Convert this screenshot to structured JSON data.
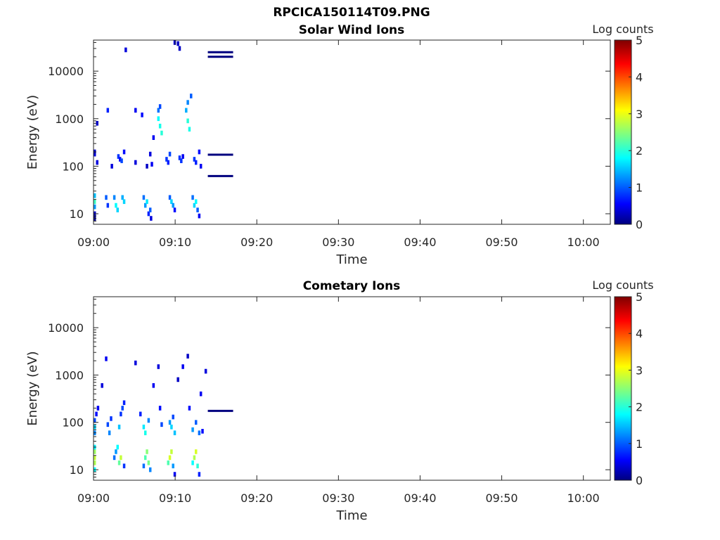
{
  "figure_title": "RPCICA150114T09.PNG",
  "colors": {
    "jet_stops": [
      "#00007f",
      "#0000ff",
      "#00ffff",
      "#ffff00",
      "#ff0000",
      "#7f0000"
    ],
    "axis": "#262626",
    "background": "#ffffff"
  },
  "chart_data": [
    {
      "type": "heatmap",
      "title": "Solar Wind Ions",
      "xlabel": "Time",
      "ylabel": "Energy (eV)",
      "x_ticks": [
        "09:00",
        "09:10",
        "09:20",
        "09:30",
        "09:40",
        "09:50",
        "10:00"
      ],
      "x_tick_minutes": [
        0,
        10,
        20,
        30,
        40,
        50,
        60
      ],
      "xlim_minutes": [
        0,
        63.3
      ],
      "y_scale": "log",
      "y_ticks": [
        "10",
        "100",
        "1000",
        "10000"
      ],
      "y_tick_values": [
        10,
        100,
        1000,
        10000
      ],
      "ylim": [
        6,
        45000
      ],
      "colorbar": {
        "label": "Log counts",
        "ticks": [
          "0",
          "1",
          "2",
          "3",
          "4",
          "5"
        ],
        "range": [
          0,
          5
        ]
      },
      "cells": [
        [
          0.0,
          10,
          0.3
        ],
        [
          0.0,
          8,
          0.1
        ],
        [
          0.0,
          14,
          1.3
        ],
        [
          0.0,
          18,
          2.1
        ],
        [
          0.0,
          24,
          1.5
        ],
        [
          0.0,
          180,
          0.4
        ],
        [
          0.0,
          200,
          0.3
        ],
        [
          0.3,
          120,
          0.4
        ],
        [
          0.3,
          800,
          0.3
        ],
        [
          1.4,
          22,
          1.0
        ],
        [
          1.6,
          15,
          0.8
        ],
        [
          1.6,
          1500,
          0.7
        ],
        [
          2.1,
          100,
          0.4
        ],
        [
          2.4,
          22,
          1.2
        ],
        [
          2.6,
          15,
          1.8
        ],
        [
          2.8,
          12,
          1.6
        ],
        [
          2.9,
          160,
          0.8
        ],
        [
          3.1,
          140,
          0.6
        ],
        [
          3.3,
          130,
          0.9
        ],
        [
          3.4,
          22,
          1.4
        ],
        [
          3.6,
          18,
          1.6
        ],
        [
          3.6,
          200,
          0.6
        ],
        [
          3.8,
          28000,
          0.4
        ],
        [
          5.0,
          1500,
          0.5
        ],
        [
          5.0,
          120,
          0.4
        ],
        [
          5.8,
          1200,
          0.6
        ],
        [
          6.0,
          22,
          1.1
        ],
        [
          6.2,
          15,
          1.3
        ],
        [
          6.4,
          18,
          1.7
        ],
        [
          6.6,
          10,
          0.7
        ],
        [
          6.8,
          12,
          1.0
        ],
        [
          6.9,
          8,
          0.4
        ],
        [
          6.4,
          100,
          0.3
        ],
        [
          6.8,
          180,
          0.4
        ],
        [
          7.0,
          110,
          0.5
        ],
        [
          7.2,
          400,
          0.5
        ],
        [
          7.8,
          1500,
          1.1
        ],
        [
          7.8,
          1000,
          1.8
        ],
        [
          8.0,
          700,
          1.9
        ],
        [
          8.0,
          1800,
          0.9
        ],
        [
          8.2,
          500,
          2.0
        ],
        [
          8.8,
          140,
          0.8
        ],
        [
          9.0,
          120,
          0.7
        ],
        [
          9.2,
          180,
          0.9
        ],
        [
          9.2,
          22,
          1.0
        ],
        [
          9.4,
          18,
          1.6
        ],
        [
          9.6,
          15,
          1.3
        ],
        [
          9.8,
          12,
          0.6
        ],
        [
          9.8,
          40000,
          0.4
        ],
        [
          10.2,
          38000,
          0.3
        ],
        [
          10.4,
          30000,
          0.3
        ],
        [
          10.4,
          150,
          0.8
        ],
        [
          10.6,
          130,
          0.8
        ],
        [
          10.8,
          160,
          0.5
        ],
        [
          11.2,
          1500,
          1.4
        ],
        [
          11.4,
          900,
          2.0
        ],
        [
          11.4,
          2200,
          1.2
        ],
        [
          11.6,
          600,
          1.9
        ],
        [
          11.8,
          3000,
          1.0
        ],
        [
          12.0,
          22,
          1.1
        ],
        [
          12.2,
          15,
          1.6
        ],
        [
          12.4,
          18,
          1.8
        ],
        [
          12.6,
          12,
          1.0
        ],
        [
          12.8,
          9,
          0.5
        ],
        [
          12.2,
          140,
          0.8
        ],
        [
          12.4,
          120,
          0.7
        ],
        [
          12.8,
          200,
          0.6
        ],
        [
          13.0,
          100,
          0.5
        ]
      ],
      "lines": [
        {
          "x_start": 14.0,
          "x_end": 17.1,
          "y": 25000
        },
        {
          "x_start": 14.0,
          "x_end": 17.1,
          "y": 20000
        },
        {
          "x_start": 14.0,
          "x_end": 17.1,
          "y": 175
        },
        {
          "x_start": 14.0,
          "x_end": 17.1,
          "y": 62
        }
      ]
    },
    {
      "type": "heatmap",
      "title": "Cometary Ions",
      "xlabel": "Time",
      "ylabel": "Energy (eV)",
      "x_ticks": [
        "09:00",
        "09:10",
        "09:20",
        "09:30",
        "09:40",
        "09:50",
        "10:00"
      ],
      "x_tick_minutes": [
        0,
        10,
        20,
        30,
        40,
        50,
        60
      ],
      "xlim_minutes": [
        0,
        63.3
      ],
      "y_scale": "log",
      "y_ticks": [
        "10",
        "100",
        "1000",
        "10000"
      ],
      "y_tick_values": [
        10,
        100,
        1000,
        10000
      ],
      "ylim": [
        6,
        45000
      ],
      "colorbar": {
        "label": "Log counts",
        "ticks": [
          "0",
          "1",
          "2",
          "3",
          "4",
          "5"
        ],
        "range": [
          0,
          5
        ]
      },
      "cells": [
        [
          0.0,
          10,
          1.8
        ],
        [
          0.0,
          14,
          2.7
        ],
        [
          0.0,
          18,
          2.8
        ],
        [
          0.0,
          24,
          2.6
        ],
        [
          0.0,
          30,
          1.7
        ],
        [
          0.0,
          60,
          1.2
        ],
        [
          0.0,
          80,
          1.6
        ],
        [
          0.0,
          110,
          0.9
        ],
        [
          0.2,
          150,
          0.6
        ],
        [
          0.4,
          200,
          0.5
        ],
        [
          0.9,
          600,
          0.4
        ],
        [
          1.4,
          2200,
          0.5
        ],
        [
          1.6,
          90,
          0.9
        ],
        [
          1.8,
          60,
          1.2
        ],
        [
          2.0,
          120,
          0.8
        ],
        [
          2.4,
          18,
          1.1
        ],
        [
          2.6,
          24,
          1.3
        ],
        [
          2.8,
          30,
          1.8
        ],
        [
          3.0,
          14,
          2.3
        ],
        [
          3.2,
          18,
          2.8
        ],
        [
          3.2,
          150,
          0.8
        ],
        [
          3.4,
          200,
          0.9
        ],
        [
          3.6,
          260,
          0.7
        ],
        [
          3.6,
          12,
          0.8
        ],
        [
          3.0,
          80,
          1.5
        ],
        [
          5.0,
          1800,
          0.4
        ],
        [
          5.6,
          150,
          0.7
        ],
        [
          6.0,
          12,
          1.1
        ],
        [
          6.2,
          18,
          2.2
        ],
        [
          6.4,
          24,
          2.5
        ],
        [
          6.6,
          14,
          2.4
        ],
        [
          6.8,
          10,
          1.2
        ],
        [
          6.0,
          80,
          1.7
        ],
        [
          6.2,
          60,
          1.9
        ],
        [
          6.6,
          110,
          1.2
        ],
        [
          7.2,
          600,
          0.5
        ],
        [
          7.8,
          1500,
          0.4
        ],
        [
          8.0,
          200,
          0.6
        ],
        [
          8.2,
          90,
          0.9
        ],
        [
          9.0,
          14,
          2.2
        ],
        [
          9.2,
          18,
          2.9
        ],
        [
          9.4,
          24,
          2.8
        ],
        [
          9.6,
          12,
          1.3
        ],
        [
          9.8,
          8,
          0.5
        ],
        [
          9.2,
          100,
          1.3
        ],
        [
          9.4,
          80,
          1.6
        ],
        [
          9.6,
          130,
          0.9
        ],
        [
          9.8,
          60,
          1.5
        ],
        [
          10.2,
          800,
          0.3
        ],
        [
          10.8,
          1500,
          0.5
        ],
        [
          11.4,
          2500,
          0.3
        ],
        [
          11.6,
          200,
          0.6
        ],
        [
          12.0,
          14,
          1.8
        ],
        [
          12.2,
          18,
          2.7
        ],
        [
          12.4,
          24,
          2.9
        ],
        [
          12.6,
          12,
          2.0
        ],
        [
          12.8,
          8,
          0.7
        ],
        [
          12.0,
          70,
          1.3
        ],
        [
          12.4,
          100,
          1.0
        ],
        [
          12.8,
          60,
          1.1
        ],
        [
          13.0,
          400,
          0.5
        ],
        [
          13.6,
          1200,
          0.4
        ],
        [
          13.2,
          65,
          0.6
        ]
      ],
      "lines": [
        {
          "x_start": 14.0,
          "x_end": 17.1,
          "y": 175
        }
      ]
    }
  ]
}
